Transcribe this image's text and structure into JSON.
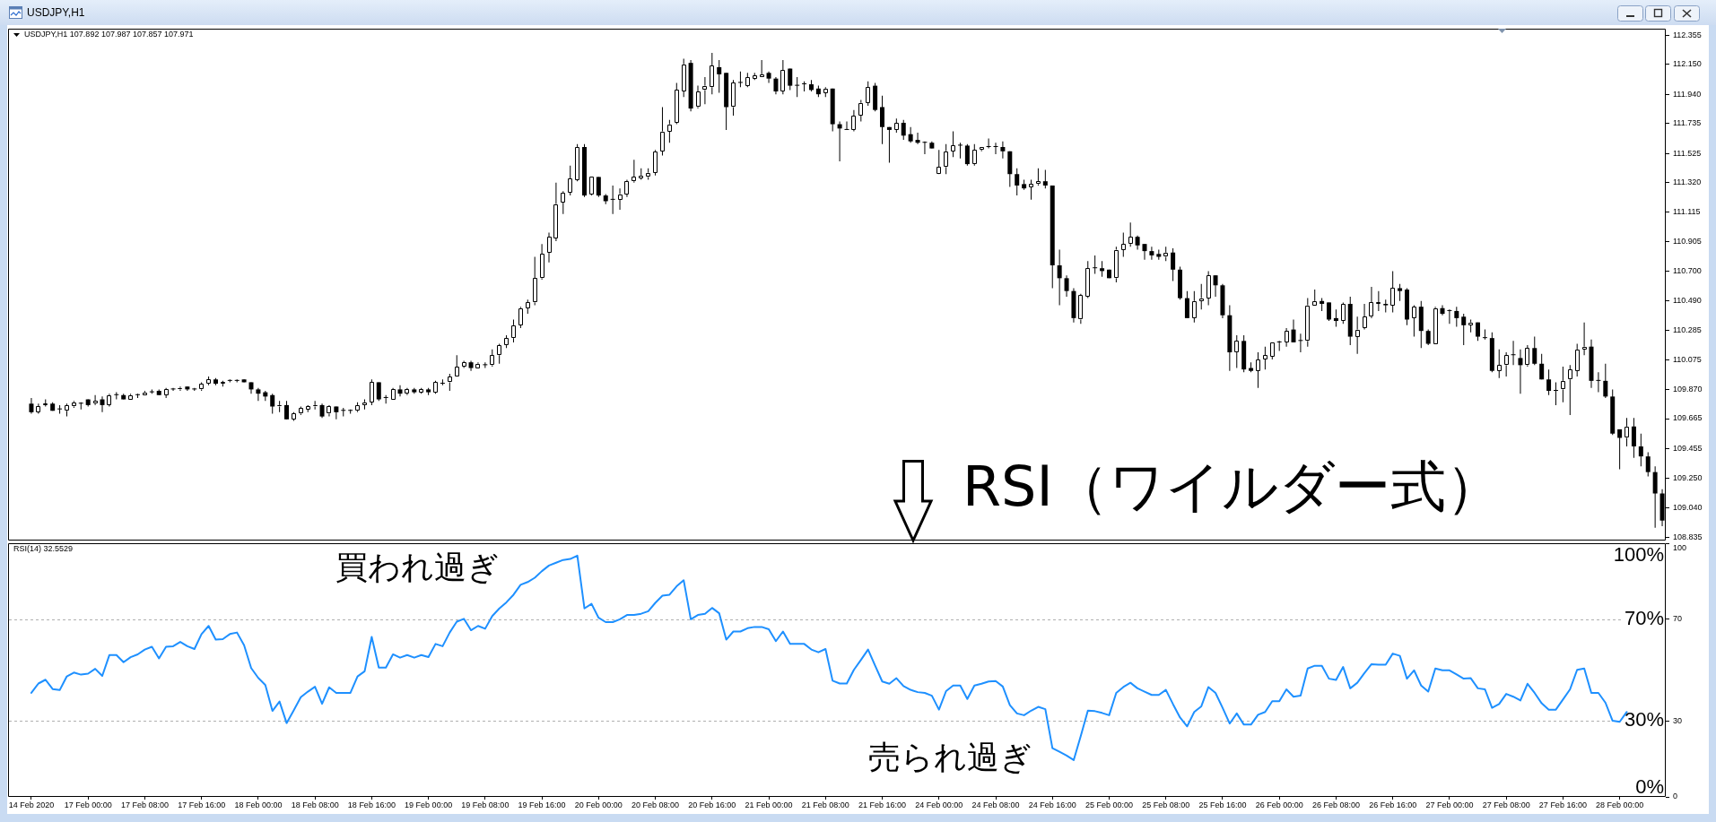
{
  "chart_data": [
    {
      "type": "candlestick",
      "title": "USDJPY,H1",
      "subtitle": "USDJPY,H1  107.892 107.987 107.857 107.971",
      "color": "#000000",
      "categories": [
        null,
        null,
        null,
        null,
        null,
        null,
        null,
        null,
        null,
        null,
        null,
        null,
        null,
        null,
        null,
        null,
        null,
        null,
        null,
        null,
        null,
        null,
        null,
        null,
        null,
        null,
        null,
        null,
        null,
        null,
        null,
        null,
        null,
        null,
        null,
        null,
        null,
        null,
        null,
        null,
        null,
        null,
        null,
        null,
        null,
        null,
        null,
        null,
        null,
        null,
        null,
        null,
        null,
        null,
        null,
        null,
        null,
        null,
        null,
        null,
        null,
        null,
        null,
        null,
        null,
        null,
        null,
        null,
        null,
        null,
        null,
        null,
        null,
        null,
        null,
        null,
        null,
        null,
        null,
        null,
        null,
        null,
        null,
        null,
        null,
        null,
        null,
        null,
        null,
        null,
        null,
        null,
        null,
        null,
        null,
        null,
        null,
        null,
        null,
        null,
        null,
        null,
        null,
        null,
        null,
        null,
        null,
        null,
        null,
        null,
        null,
        null,
        null,
        null,
        null,
        null,
        null,
        null,
        null,
        null,
        null,
        null,
        null,
        null,
        null,
        null,
        null,
        null,
        null,
        null,
        null,
        null,
        null,
        null,
        null,
        null,
        null,
        null,
        null,
        null,
        null,
        null,
        null,
        null,
        null,
        null,
        null,
        null,
        null,
        null,
        null,
        null,
        null,
        null,
        null,
        null,
        null,
        null,
        null,
        null,
        null,
        null,
        null,
        null,
        null,
        null,
        null,
        null,
        null,
        null,
        null,
        null,
        null,
        null,
        null,
        null,
        null,
        null,
        null,
        null,
        null,
        null,
        null,
        null,
        null,
        null,
        null,
        null,
        null,
        null,
        null,
        null,
        null,
        null,
        null,
        null,
        null,
        null,
        null,
        null,
        null,
        null,
        null,
        null,
        null,
        null,
        null,
        null,
        null,
        null,
        null,
        null,
        null,
        null,
        null,
        null,
        null,
        null,
        null,
        null,
        null,
        null,
        null,
        null,
        null,
        null,
        null,
        null,
        null,
        null,
        null
      ],
      "ohlc": [
        [
          109.77,
          109.81,
          109.7,
          109.71
        ],
        [
          109.71,
          109.77,
          109.7,
          109.75
        ],
        [
          109.76,
          109.8,
          109.75,
          109.77
        ],
        [
          109.77,
          109.78,
          109.72,
          109.72
        ],
        [
          109.73,
          109.76,
          109.7,
          109.73
        ],
        [
          109.72,
          109.77,
          109.68,
          109.76
        ],
        [
          109.75,
          109.79,
          109.74,
          109.78
        ],
        [
          109.77,
          109.78,
          109.73,
          109.77
        ],
        [
          109.8,
          109.8,
          109.75,
          109.76
        ],
        [
          109.77,
          109.83,
          109.76,
          109.79
        ],
        [
          109.8,
          109.82,
          109.71,
          109.76
        ],
        [
          109.76,
          109.84,
          109.75,
          109.83
        ],
        [
          109.83,
          109.85,
          109.8,
          109.83
        ],
        [
          109.83,
          109.84,
          109.8,
          109.8
        ],
        [
          109.8,
          109.84,
          109.8,
          109.83
        ],
        [
          109.83,
          109.84,
          109.81,
          109.83
        ],
        [
          109.83,
          109.86,
          109.83,
          109.85
        ],
        [
          109.85,
          109.87,
          109.84,
          109.85
        ],
        [
          109.86,
          109.87,
          109.83,
          109.83
        ],
        [
          109.83,
          109.88,
          109.81,
          109.87
        ],
        [
          109.87,
          109.88,
          109.86,
          109.87
        ],
        [
          109.87,
          109.89,
          109.86,
          109.88
        ],
        [
          109.89,
          109.89,
          109.86,
          109.87
        ],
        [
          109.87,
          109.88,
          109.86,
          109.87
        ],
        [
          109.87,
          109.92,
          109.86,
          109.91
        ],
        [
          109.91,
          109.96,
          109.9,
          109.94
        ],
        [
          109.94,
          109.95,
          109.9,
          109.91
        ],
        [
          109.91,
          109.93,
          109.89,
          109.92
        ],
        [
          109.93,
          109.94,
          109.92,
          109.93
        ],
        [
          109.93,
          109.94,
          109.92,
          109.93
        ],
        [
          109.94,
          109.94,
          109.92,
          109.92
        ],
        [
          109.92,
          109.92,
          109.84,
          109.87
        ],
        [
          109.87,
          109.88,
          109.79,
          109.84
        ],
        [
          109.85,
          109.86,
          109.79,
          109.82
        ],
        [
          109.83,
          109.84,
          109.7,
          109.75
        ],
        [
          109.75,
          109.79,
          109.71,
          109.76
        ],
        [
          109.76,
          109.79,
          109.66,
          109.66
        ],
        [
          109.66,
          109.71,
          109.65,
          109.7
        ],
        [
          109.7,
          109.75,
          109.69,
          109.74
        ],
        [
          109.73,
          109.76,
          109.71,
          109.75
        ],
        [
          109.75,
          109.79,
          109.73,
          109.76
        ],
        [
          109.76,
          109.77,
          109.67,
          109.68
        ],
        [
          109.7,
          109.76,
          109.68,
          109.75
        ],
        [
          109.75,
          109.75,
          109.66,
          109.71
        ],
        [
          109.72,
          109.74,
          109.68,
          109.72
        ],
        [
          109.72,
          109.73,
          109.7,
          109.72
        ],
        [
          109.72,
          109.78,
          109.71,
          109.76
        ],
        [
          109.76,
          109.8,
          109.73,
          109.78
        ],
        [
          109.78,
          109.94,
          109.76,
          109.92
        ],
        [
          109.92,
          109.92,
          109.79,
          109.8
        ],
        [
          109.81,
          109.83,
          109.77,
          109.81
        ],
        [
          109.8,
          109.88,
          109.8,
          109.87
        ],
        [
          109.87,
          109.9,
          109.82,
          109.84
        ],
        [
          109.84,
          109.88,
          109.83,
          109.87
        ],
        [
          109.87,
          109.88,
          109.84,
          109.85
        ],
        [
          109.85,
          109.88,
          109.84,
          109.87
        ],
        [
          109.87,
          109.88,
          109.83,
          109.85
        ],
        [
          109.85,
          109.93,
          109.84,
          109.92
        ],
        [
          109.91,
          109.94,
          109.9,
          109.91
        ],
        [
          109.92,
          109.98,
          109.86,
          109.96
        ],
        [
          109.96,
          110.11,
          109.96,
          110.03
        ],
        [
          110.03,
          110.07,
          110.02,
          110.06
        ],
        [
          110.06,
          110.07,
          110.0,
          110.02
        ],
        [
          110.02,
          110.06,
          110.02,
          110.05
        ],
        [
          110.04,
          110.06,
          110.02,
          110.04
        ],
        [
          110.04,
          110.15,
          110.03,
          110.11
        ],
        [
          110.11,
          110.19,
          110.05,
          110.18
        ],
        [
          110.18,
          110.25,
          110.16,
          110.23
        ],
        [
          110.23,
          110.36,
          110.2,
          110.32
        ],
        [
          110.32,
          110.45,
          110.3,
          110.44
        ],
        [
          110.44,
          110.5,
          110.4,
          110.48
        ],
        [
          110.48,
          110.8,
          110.46,
          110.65
        ],
        [
          110.65,
          110.89,
          110.64,
          110.82
        ],
        [
          110.83,
          110.97,
          110.76,
          110.94
        ],
        [
          110.93,
          111.32,
          110.91,
          111.17
        ],
        [
          111.18,
          111.26,
          111.1,
          111.25
        ],
        [
          111.25,
          111.44,
          111.23,
          111.35
        ],
        [
          111.34,
          111.59,
          111.33,
          111.57
        ],
        [
          111.57,
          111.59,
          111.22,
          111.23
        ],
        [
          111.24,
          111.36,
          111.23,
          111.36
        ],
        [
          111.36,
          111.36,
          111.22,
          111.23
        ],
        [
          111.23,
          111.24,
          111.17,
          111.19
        ],
        [
          111.2,
          111.3,
          111.1,
          111.2
        ],
        [
          111.2,
          111.28,
          111.13,
          111.24
        ],
        [
          111.24,
          111.34,
          111.22,
          111.33
        ],
        [
          111.33,
          111.48,
          111.32,
          111.36
        ],
        [
          111.35,
          111.42,
          111.34,
          111.37
        ],
        [
          111.36,
          111.42,
          111.34,
          111.39
        ],
        [
          111.39,
          111.55,
          111.37,
          111.54
        ],
        [
          111.54,
          111.85,
          111.51,
          111.68
        ],
        [
          111.68,
          111.76,
          111.6,
          111.73
        ],
        [
          111.74,
          112.02,
          111.73,
          111.97
        ],
        [
          111.96,
          112.19,
          111.92,
          112.15
        ],
        [
          112.16,
          112.18,
          111.82,
          111.84
        ],
        [
          111.85,
          112.0,
          111.84,
          111.96
        ],
        [
          111.97,
          112.06,
          111.87,
          112.0
        ],
        [
          111.99,
          112.23,
          111.94,
          112.14
        ],
        [
          112.13,
          112.18,
          111.95,
          112.08
        ],
        [
          112.09,
          112.09,
          111.69,
          111.85
        ],
        [
          111.85,
          112.04,
          111.79,
          112.02
        ],
        [
          112.02,
          112.1,
          111.99,
          112.02
        ],
        [
          112.0,
          112.09,
          111.99,
          112.06
        ],
        [
          112.05,
          112.09,
          112.04,
          112.07
        ],
        [
          112.06,
          112.18,
          112.06,
          112.08
        ],
        [
          112.09,
          112.1,
          112.02,
          112.05
        ],
        [
          112.05,
          112.06,
          111.94,
          111.96
        ],
        [
          111.96,
          112.18,
          111.94,
          112.11
        ],
        [
          112.12,
          112.12,
          111.97,
          112.0
        ],
        [
          112.0,
          112.06,
          111.92,
          112.0
        ],
        [
          112.01,
          112.03,
          111.96,
          112.01
        ],
        [
          112.01,
          112.04,
          111.96,
          111.97
        ],
        [
          111.98,
          112.0,
          111.92,
          111.94
        ],
        [
          111.95,
          111.99,
          111.92,
          111.98
        ],
        [
          111.98,
          111.98,
          111.68,
          111.73
        ],
        [
          111.73,
          111.75,
          111.47,
          111.7
        ],
        [
          111.69,
          111.75,
          111.69,
          111.69
        ],
        [
          111.69,
          111.83,
          111.68,
          111.79
        ],
        [
          111.79,
          111.9,
          111.75,
          111.88
        ],
        [
          111.88,
          112.03,
          111.86,
          111.99
        ],
        [
          112.0,
          112.02,
          111.82,
          111.83
        ],
        [
          111.85,
          111.93,
          111.59,
          111.71
        ],
        [
          111.71,
          111.71,
          111.46,
          111.69
        ],
        [
          111.69,
          111.77,
          111.67,
          111.74
        ],
        [
          111.74,
          111.76,
          111.62,
          111.65
        ],
        [
          111.66,
          111.71,
          111.6,
          111.61
        ],
        [
          111.62,
          111.67,
          111.59,
          111.6
        ],
        [
          111.6,
          111.61,
          111.52,
          111.6
        ],
        [
          111.6,
          111.61,
          111.56,
          111.56
        ],
        [
          111.38,
          111.55,
          111.38,
          111.43
        ],
        [
          111.43,
          111.59,
          111.38,
          111.54
        ],
        [
          111.54,
          111.68,
          111.5,
          111.58
        ],
        [
          111.58,
          111.6,
          111.49,
          111.58
        ],
        [
          111.58,
          111.59,
          111.44,
          111.45
        ],
        [
          111.45,
          111.59,
          111.44,
          111.55
        ],
        [
          111.55,
          111.57,
          111.54,
          111.57
        ],
        [
          111.57,
          111.63,
          111.56,
          111.57
        ],
        [
          111.57,
          111.6,
          111.52,
          111.57
        ],
        [
          111.57,
          111.61,
          111.49,
          111.54
        ],
        [
          111.54,
          111.54,
          111.29,
          111.38
        ],
        [
          111.38,
          111.42,
          111.23,
          111.3
        ],
        [
          111.31,
          111.34,
          111.27,
          111.28
        ],
        [
          111.29,
          111.34,
          111.2,
          111.31
        ],
        [
          111.31,
          111.42,
          111.3,
          111.33
        ],
        [
          111.33,
          111.41,
          111.28,
          111.3
        ],
        [
          111.3,
          111.3,
          110.58,
          110.74
        ],
        [
          110.74,
          110.85,
          110.46,
          110.65
        ],
        [
          110.65,
          110.67,
          110.52,
          110.56
        ],
        [
          110.56,
          110.58,
          110.34,
          110.37
        ],
        [
          110.36,
          110.54,
          110.33,
          110.53
        ],
        [
          110.52,
          110.77,
          110.51,
          110.72
        ],
        [
          110.72,
          110.81,
          110.68,
          110.72
        ],
        [
          110.72,
          110.77,
          110.66,
          110.7
        ],
        [
          110.71,
          110.71,
          110.65,
          110.65
        ],
        [
          110.65,
          110.87,
          110.62,
          110.85
        ],
        [
          110.85,
          110.97,
          110.8,
          110.89
        ],
        [
          110.89,
          111.04,
          110.87,
          110.94
        ],
        [
          110.94,
          110.95,
          110.85,
          110.88
        ],
        [
          110.89,
          110.89,
          110.78,
          110.84
        ],
        [
          110.84,
          110.87,
          110.78,
          110.81
        ],
        [
          110.82,
          110.85,
          110.78,
          110.8
        ],
        [
          110.8,
          110.87,
          110.77,
          110.83
        ],
        [
          110.83,
          110.86,
          110.63,
          110.71
        ],
        [
          110.71,
          110.73,
          110.5,
          110.51
        ],
        [
          110.51,
          110.56,
          110.37,
          110.37
        ],
        [
          110.37,
          110.56,
          110.34,
          110.49
        ],
        [
          110.49,
          110.61,
          110.43,
          110.51
        ],
        [
          110.51,
          110.7,
          110.46,
          110.67
        ],
        [
          110.67,
          110.67,
          110.52,
          110.6
        ],
        [
          110.6,
          110.61,
          110.37,
          110.39
        ],
        [
          110.39,
          110.46,
          110.0,
          110.13
        ],
        [
          110.13,
          110.25,
          110.02,
          110.21
        ],
        [
          110.21,
          110.25,
          109.99,
          110.01
        ],
        [
          110.02,
          110.06,
          109.99,
          110.0
        ],
        [
          110.0,
          110.13,
          109.88,
          110.08
        ],
        [
          110.08,
          110.17,
          110.01,
          110.11
        ],
        [
          110.1,
          110.2,
          110.08,
          110.2
        ],
        [
          110.2,
          110.21,
          110.14,
          110.2
        ],
        [
          110.2,
          110.3,
          110.17,
          110.28
        ],
        [
          110.29,
          110.36,
          110.2,
          110.2
        ],
        [
          110.21,
          110.26,
          110.13,
          110.21
        ],
        [
          110.21,
          110.51,
          110.17,
          110.46
        ],
        [
          110.46,
          110.57,
          110.46,
          110.49
        ],
        [
          110.49,
          110.51,
          110.42,
          110.47
        ],
        [
          110.48,
          110.48,
          110.35,
          110.36
        ],
        [
          110.37,
          110.43,
          110.31,
          110.35
        ],
        [
          110.35,
          110.48,
          110.33,
          110.47
        ],
        [
          110.47,
          110.52,
          110.18,
          110.24
        ],
        [
          110.24,
          110.38,
          110.12,
          110.29
        ],
        [
          110.3,
          110.47,
          110.29,
          110.38
        ],
        [
          110.38,
          110.59,
          110.37,
          110.48
        ],
        [
          110.47,
          110.56,
          110.42,
          110.48
        ],
        [
          110.47,
          110.5,
          110.41,
          110.46
        ],
        [
          110.46,
          110.7,
          110.41,
          110.58
        ],
        [
          110.58,
          110.61,
          110.49,
          110.56
        ],
        [
          110.57,
          110.58,
          110.32,
          110.36
        ],
        [
          110.37,
          110.46,
          110.24,
          110.45
        ],
        [
          110.45,
          110.49,
          110.16,
          110.28
        ],
        [
          110.28,
          110.29,
          110.18,
          110.19
        ],
        [
          110.19,
          110.45,
          110.19,
          110.44
        ],
        [
          110.44,
          110.46,
          110.39,
          110.4
        ],
        [
          110.42,
          110.43,
          110.33,
          110.42
        ],
        [
          110.42,
          110.45,
          110.31,
          110.37
        ],
        [
          110.38,
          110.4,
          110.18,
          110.32
        ],
        [
          110.32,
          110.36,
          110.27,
          110.34
        ],
        [
          110.34,
          110.34,
          110.21,
          110.24
        ],
        [
          110.23,
          110.29,
          110.22,
          110.23
        ],
        [
          110.23,
          110.27,
          109.99,
          110.0
        ],
        [
          110.0,
          110.15,
          109.95,
          110.04
        ],
        [
          110.04,
          110.13,
          109.96,
          110.11
        ],
        [
          110.11,
          110.21,
          110.04,
          110.11
        ],
        [
          110.09,
          110.15,
          109.84,
          110.04
        ],
        [
          110.04,
          110.18,
          110.03,
          110.16
        ],
        [
          110.16,
          110.24,
          110.04,
          110.05
        ],
        [
          110.05,
          110.12,
          109.94,
          109.94
        ],
        [
          109.94,
          110.01,
          109.83,
          109.86
        ],
        [
          109.86,
          109.92,
          109.76,
          109.86
        ],
        [
          109.87,
          110.03,
          109.78,
          109.93
        ],
        [
          109.94,
          110.04,
          109.69,
          110.01
        ],
        [
          110.0,
          110.19,
          109.96,
          110.15
        ],
        [
          110.15,
          110.34,
          110.11,
          110.17
        ],
        [
          110.17,
          110.22,
          109.88,
          109.93
        ],
        [
          109.93,
          109.99,
          109.85,
          109.93
        ],
        [
          109.93,
          110.05,
          109.81,
          109.82
        ],
        [
          109.82,
          109.87,
          109.55,
          109.56
        ],
        [
          109.59,
          109.59,
          109.31,
          109.53
        ],
        [
          109.53,
          109.67,
          109.47,
          109.61
        ],
        [
          109.61,
          109.67,
          109.39,
          109.47
        ],
        [
          109.47,
          109.56,
          109.33,
          109.4
        ],
        [
          109.4,
          109.43,
          109.26,
          109.29
        ],
        [
          109.29,
          109.33,
          108.9,
          109.14
        ],
        [
          109.14,
          109.17,
          108.91,
          108.95
        ]
      ],
      "colors": [
        "#000000",
        "#ffffff",
        "#ffffff",
        "#000000",
        "#000000",
        "#ffffff",
        "#ffffff",
        "#000000",
        "#000000",
        "#ffffff",
        "#000000",
        "#ffffff",
        "#000000",
        "#000000",
        "#ffffff",
        "#000000",
        "#ffffff",
        "#000000",
        "#000000",
        "#ffffff",
        "#000000",
        "#ffffff",
        "#000000",
        "#000000",
        "#ffffff",
        "#ffffff",
        "#000000",
        "#ffffff",
        "#000000",
        "#000000",
        "#000000",
        "#000000",
        "#000000",
        "#000000",
        "#000000",
        "#ffffff",
        "#000000",
        "#ffffff",
        "#ffffff",
        "#ffffff",
        "#ffffff",
        "#000000",
        "#ffffff",
        "#000000",
        "#000000",
        "#000000",
        "#ffffff",
        "#ffffff",
        "#ffffff",
        "#000000",
        "#000000",
        "#ffffff",
        "#000000",
        "#ffffff",
        "#000000",
        "#ffffff",
        "#000000",
        "#ffffff",
        "#000000",
        "#ffffff",
        "#ffffff",
        "#ffffff",
        "#000000",
        "#ffffff",
        "#000000",
        "#ffffff",
        "#ffffff",
        "#ffffff",
        "#ffffff",
        "#ffffff",
        "#ffffff",
        "#ffffff",
        "#ffffff",
        "#ffffff",
        "#ffffff",
        "#ffffff",
        "#ffffff",
        "#ffffff",
        "#000000",
        "#ffffff",
        "#000000",
        "#000000",
        "#000000",
        "#ffffff",
        "#ffffff",
        "#ffffff",
        "#ffffff",
        "#ffffff",
        "#ffffff",
        "#ffffff",
        "#ffffff",
        "#ffffff",
        "#ffffff",
        "#000000",
        "#ffffff",
        "#ffffff",
        "#ffffff",
        "#000000",
        "#000000",
        "#ffffff",
        "#000000",
        "#ffffff",
        "#ffffff",
        "#ffffff",
        "#000000",
        "#000000",
        "#ffffff",
        "#000000",
        "#000000",
        "#000000",
        "#000000",
        "#000000",
        "#ffffff",
        "#000000",
        "#000000",
        "#000000",
        "#ffffff",
        "#ffffff",
        "#ffffff",
        "#000000",
        "#000000",
        "#000000",
        "#ffffff",
        "#000000",
        "#000000",
        "#000000",
        "#000000",
        "#000000",
        "#ffffff",
        "#ffffff",
        "#ffffff",
        "#000000",
        "#000000",
        "#ffffff",
        "#ffffff",
        "#000000",
        "#000000",
        "#000000",
        "#000000",
        "#000000",
        "#000000",
        "#ffffff",
        "#ffffff",
        "#000000",
        "#000000",
        "#000000",
        "#000000",
        "#000000",
        "#ffffff",
        "#ffffff",
        "#000000",
        "#000000",
        "#000000",
        "#ffffff",
        "#ffffff",
        "#ffffff",
        "#000000",
        "#000000",
        "#000000",
        "#000000",
        "#ffffff",
        "#000000",
        "#000000",
        "#000000",
        "#ffffff",
        "#ffffff",
        "#ffffff",
        "#000000",
        "#000000",
        "#000000",
        "#ffffff",
        "#000000",
        "#000000",
        "#ffffff",
        "#ffffff",
        "#ffffff",
        "#000000",
        "#ffffff",
        "#000000",
        "#000000",
        "#ffffff",
        "#ffffff",
        "#000000",
        "#000000",
        "#000000",
        "#ffffff",
        "#000000",
        "#ffffff",
        "#ffffff",
        "#ffffff",
        "#ffffff",
        "#000000",
        "#ffffff",
        "#000000",
        "#000000",
        "#ffffff",
        "#000000",
        "#000000",
        "#ffffff",
        "#000000",
        "#000000",
        "#000000",
        "#000000",
        "#ffffff",
        "#000000",
        "#000000",
        "#000000",
        "#ffffff",
        "#ffffff",
        "#000000",
        "#000000",
        "#ffffff",
        "#000000",
        "#000000",
        "#000000",
        "#000000",
        "#ffffff",
        "#ffffff",
        "#ffffff",
        "#ffffff",
        "#000000",
        "#000000",
        "#000000",
        "#000000",
        "#000000",
        "#ffffff",
        "#000000",
        "#000000",
        "#000000",
        "#000000",
        "#000000"
      ],
      "ylim": [
        108.81,
        112.4
      ],
      "yticks": [
        108.835,
        {
          "value": 109.04,
          "label": "109.040"
        },
        {
          "value": 109.25,
          "label": "109.250"
        },
        109.455,
        109.665,
        {
          "value": 109.87,
          "label": "109.870"
        },
        110.075,
        110.285,
        {
          "value": 110.49,
          "label": "110.490"
        },
        {
          "value": 110.7,
          "label": "110.700"
        },
        110.905,
        111.115,
        {
          "value": 111.32,
          "label": "111.320"
        },
        111.525,
        111.735,
        {
          "value": 111.94,
          "label": "111.940"
        },
        {
          "value": 112.15,
          "label": "112.150"
        },
        112.355
      ],
      "tick_labels": "y"
    },
    {
      "type": "line",
      "title": "RSI（ワイルダー式）",
      "subtitle": "RSI(14) 32.5529",
      "color": "#1e90ff",
      "categories": [
        "14 Feb 2020",
        null,
        null,
        null,
        null,
        null,
        null,
        null,
        "17 Feb 00:00",
        null,
        null,
        null,
        null,
        null,
        null,
        null,
        "17 Feb 08:00",
        null,
        null,
        null,
        null,
        null,
        null,
        null,
        "17 Feb 16:00",
        null,
        null,
        null,
        null,
        null,
        null,
        null,
        "18 Feb 00:00",
        null,
        null,
        null,
        null,
        null,
        null,
        null,
        "18 Feb 08:00",
        null,
        null,
        null,
        null,
        null,
        null,
        null,
        "18 Feb 16:00",
        null,
        null,
        null,
        null,
        null,
        null,
        null,
        "19 Feb 00:00",
        null,
        null,
        null,
        null,
        null,
        null,
        null,
        "19 Feb 08:00",
        null,
        null,
        null,
        null,
        null,
        null,
        null,
        "19 Feb 16:00",
        null,
        null,
        null,
        null,
        null,
        null,
        null,
        "20 Feb 00:00",
        null,
        null,
        null,
        null,
        null,
        null,
        null,
        "20 Feb 08:00",
        null,
        null,
        null,
        null,
        null,
        null,
        null,
        "20 Feb 16:00",
        null,
        null,
        null,
        null,
        null,
        null,
        null,
        "21 Feb 00:00",
        null,
        null,
        null,
        null,
        null,
        null,
        null,
        "21 Feb 08:00",
        null,
        null,
        null,
        null,
        null,
        null,
        null,
        "21 Feb 16:00",
        null,
        null,
        null,
        null,
        null,
        null,
        null,
        "24 Feb 00:00",
        null,
        null,
        null,
        null,
        null,
        null,
        null,
        "24 Feb 08:00",
        null,
        null,
        null,
        null,
        null,
        null,
        null,
        "24 Feb 16:00",
        null,
        null,
        null,
        null,
        null,
        null,
        null,
        "25 Feb 00:00",
        null,
        null,
        null,
        null,
        null,
        null,
        null,
        "25 Feb 08:00",
        null,
        null,
        null,
        null,
        null,
        null,
        null,
        "25 Feb 16:00",
        null,
        null,
        null,
        null,
        null,
        null,
        null,
        "26 Feb 00:00",
        null,
        null,
        null,
        null,
        null,
        null,
        null,
        "26 Feb 08:00",
        null,
        null,
        null,
        null,
        null,
        null,
        null,
        "26 Feb 16:00",
        null,
        null,
        null,
        null,
        null,
        null,
        null,
        "27 Feb 00:00",
        null,
        null,
        null,
        null,
        null,
        null,
        null,
        "27 Feb 08:00",
        null,
        null,
        null,
        null,
        null,
        null,
        null,
        "27 Feb 16:00",
        null,
        null,
        null,
        null,
        null,
        null,
        null,
        "28 Feb 00:00",
        null,
        null,
        null,
        null,
        null,
        null
      ],
      "values": [
        41.0,
        44.7,
        46.2,
        42.5,
        42.1,
        47.5,
        49.0,
        48.2,
        48.6,
        50.5,
        47.7,
        55.9,
        55.9,
        53.1,
        55.1,
        56.2,
        58.1,
        59.2,
        54.6,
        59.2,
        59.4,
        61.1,
        59.4,
        58.3,
        64.2,
        67.4,
        62.0,
        62.2,
        64.2,
        64.8,
        59.8,
        50.8,
        46.9,
        44.1,
        33.9,
        37.6,
        29.1,
        34.1,
        39.3,
        41.5,
        43.4,
        36.7,
        43.2,
        41.0,
        41.0,
        41.0,
        47.5,
        49.5,
        63.1,
        51.0,
        51.0,
        56.2,
        54.9,
        55.9,
        54.9,
        55.9,
        55.1,
        60.3,
        59.4,
        64.8,
        69.1,
        70.2,
        65.7,
        67.4,
        66.3,
        71.3,
        74.3,
        76.7,
        79.7,
        83.6,
        84.7,
        86.4,
        89.0,
        91.2,
        92.3,
        93.4,
        93.8,
        95.1,
        74.3,
        76.1,
        70.6,
        68.9,
        68.9,
        70.0,
        71.7,
        71.7,
        72.2,
        73.2,
        76.5,
        79.3,
        79.7,
        83.0,
        85.4,
        70.0,
        71.7,
        72.2,
        74.5,
        72.4,
        62.0,
        65.2,
        65.2,
        66.5,
        67.0,
        67.0,
        66.1,
        61.4,
        65.2,
        60.3,
        60.3,
        60.3,
        58.1,
        57.0,
        58.3,
        45.8,
        44.7,
        44.7,
        50.1,
        54.0,
        58.1,
        51.7,
        45.5,
        44.6,
        46.8,
        43.7,
        42.2,
        41.3,
        41.0,
        39.9,
        34.4,
        41.7,
        43.9,
        43.9,
        38.6,
        43.9,
        44.6,
        45.5,
        45.7,
        43.5,
        36.2,
        32.9,
        32.2,
        34.0,
        35.5,
        34.6,
        19.2,
        17.8,
        16.3,
        14.5,
        24.0,
        34.0,
        33.8,
        33.1,
        32.2,
        41.0,
        43.3,
        45.0,
        42.8,
        41.5,
        40.2,
        40.2,
        42.2,
        36.6,
        31.3,
        27.8,
        33.5,
        35.7,
        43.3,
        41.0,
        35.1,
        28.9,
        32.9,
        28.5,
        28.5,
        32.4,
        33.5,
        37.7,
        37.7,
        42.4,
        39.5,
        39.9,
        50.6,
        51.7,
        51.7,
        46.6,
        46.1,
        51.2,
        42.8,
        45.0,
        48.8,
        52.3,
        52.1,
        52.1,
        56.5,
        55.6,
        46.6,
        49.9,
        43.9,
        41.5,
        50.6,
        49.9,
        49.9,
        48.3,
        46.6,
        46.8,
        42.8,
        42.4,
        35.1,
        36.6,
        40.6,
        39.5,
        38.0,
        44.6,
        41.0,
        36.9,
        34.4,
        34.4,
        38.4,
        42.4,
        50.1,
        50.6,
        41.0,
        41.0,
        37.1,
        30.0,
        29.6,
        33.5,
        null,
        null,
        null,
        null,
        null
      ],
      "ylim": [
        0,
        100
      ],
      "yticks": [
        0,
        30,
        70,
        100
      ],
      "ref_lines": [
        {
          "axis": "y",
          "value": 70,
          "label": "70%",
          "color": "#b0b0b0",
          "line_style": "dashed"
        },
        {
          "axis": "y",
          "value": 30,
          "label": "30%",
          "color": "#b0b0b0",
          "line_style": "dashed"
        }
      ],
      "annotations": [
        "100%",
        "0%",
        "買われ過ぎ",
        "売られ過ぎ"
      ]
    }
  ]
}
